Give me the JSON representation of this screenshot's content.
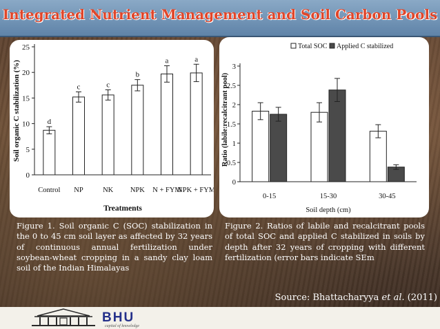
{
  "slide": {
    "title": "Integrated Nutrient Management and Soil Carbon Pools",
    "caption_1": "Figure 1. Soil organic C (SOC) stabilization in the 0 to 45 cm soil layer as affected by 32 years of continuous annual fertilization under soybean-wheat cropping in a sandy clay loam soil of the Indian Himalayas",
    "caption_2": "Figure 2. Ratios of labile and recalcitrant pools of total SOC and applied C stabilized in soils by depth after 32 years of cropping with different fertilization (error bars indicate SEm",
    "source_prefix": "Source: Bhattacharyya ",
    "source_italic": "et al.",
    "source_year": " (2011)",
    "logo_text": "BHU",
    "logo_sub": "capital of knowledge"
  },
  "colors": {
    "title": "#e0462a",
    "title_bar": "#6f91b5",
    "dark_bar": "#4a4a4a"
  },
  "chart_data": [
    {
      "type": "bar",
      "categories": [
        "Control",
        "NP",
        "NK",
        "NPK",
        "N + FYM",
        "NPK + FYM"
      ],
      "values": [
        8.7,
        15.2,
        15.6,
        17.5,
        19.7,
        19.9
      ],
      "errors": [
        0.7,
        1.0,
        1.0,
        1.1,
        1.6,
        1.7
      ],
      "letters": [
        "d",
        "c",
        "c",
        "b",
        "a",
        "a"
      ],
      "xlabel": "Treatments",
      "ylabel": "Soil organic C stabilization (%)",
      "ylim": [
        0,
        25
      ],
      "yticks": [
        0,
        5,
        10,
        15,
        20,
        25
      ],
      "grid": false
    },
    {
      "type": "bar",
      "categories": [
        "0-15",
        "15-30",
        "30-45"
      ],
      "series": [
        {
          "name": "Total SOC",
          "values": [
            1.83,
            1.8,
            1.31
          ],
          "errors": [
            0.22,
            0.25,
            0.17
          ],
          "color": "#ffffff"
        },
        {
          "name": "Applied C stabilized",
          "values": [
            1.75,
            2.38,
            0.38
          ],
          "errors": [
            0.18,
            0.3,
            0.06
          ],
          "color": "#4a4a4a"
        }
      ],
      "xlabel": "Soil depth (cm)",
      "ylabel": "Ratio (labile:recalcitrant pool)",
      "ylim": [
        0,
        3
      ],
      "yticks": [
        "0",
        "0.5",
        "1",
        "1.5",
        "2",
        "2.5",
        "3"
      ],
      "legend": "top",
      "grid": false
    }
  ]
}
